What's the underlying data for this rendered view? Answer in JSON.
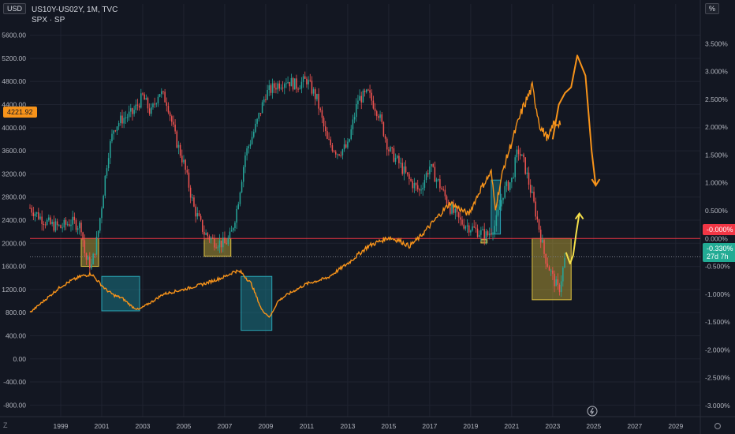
{
  "header": {
    "symbol_line": "US10Y-US02Y, 1M, TVC",
    "overlay_line": "SPX · SP"
  },
  "left_axis_unit": "USD",
  "right_axis_unit": "%",
  "corner_left_label": "Z",
  "colors": {
    "background": "#131722",
    "grid": "#1f2330",
    "candle_up": "#26a69a",
    "candle_down": "#ef5350",
    "spx_line": "#f7931a",
    "zero_line": "#f23645",
    "yellow_box": "#c9b037",
    "teal_box": "#1b8a98",
    "projection_yellow": "#f5e04a"
  },
  "badges": {
    "spx_last": "4221.92",
    "zero_level": "-0.000%",
    "spread_last": "-0.330%",
    "spread_timer": "27d 7h"
  },
  "chart_data": {
    "type": "line",
    "title": "US10Y-US02Y, 1M, TVC",
    "x_axis": {
      "ticks": [
        "1999",
        "2001",
        "2003",
        "2005",
        "2007",
        "2009",
        "2011",
        "2013",
        "2015",
        "2017",
        "2019",
        "2021",
        "2023",
        "2025",
        "2027",
        "2029"
      ],
      "range": [
        1997.5,
        2030.2
      ]
    },
    "left_axis": {
      "label": "USD",
      "ticks": [
        5600,
        5200,
        4800,
        4400,
        4000,
        3600,
        3200,
        2800,
        2400,
        2000,
        1600,
        1200,
        800,
        400,
        0,
        -400,
        -800
      ],
      "tick_labels": [
        "5600.00",
        "5200.00",
        "4800.00",
        "4400.00",
        "4000.00",
        "3600.00",
        "3200.00",
        "2800.00",
        "2400.00",
        "2000.00",
        "1600.00",
        "1200.00",
        "800.00",
        "400.00",
        "0.00",
        "-400.00",
        "-800.00"
      ],
      "range": [
        -1000,
        5800
      ]
    },
    "right_axis": {
      "label": "%",
      "ticks": [
        3.5,
        3.0,
        2.5,
        2.0,
        1.5,
        1.0,
        0.5,
        0.0,
        -0.5,
        -1.0,
        -1.5,
        -2.0,
        -2.5,
        -3.0
      ],
      "tick_labels": [
        "3.500%",
        "3.000%",
        "2.500%",
        "2.000%",
        "1.500%",
        "1.000%",
        "0.500%",
        "0.000%",
        "-0.500%",
        "-1.000%",
        "-1.500%",
        "-2.000%",
        "-2.500%",
        "-3.000%"
      ],
      "range": [
        -3.2,
        3.86
      ]
    },
    "series": [
      {
        "name": "US10Y-US02Y",
        "axis": "right",
        "x": [
          1997.5,
          1998.0,
          1998.5,
          1999.0,
          1999.5,
          2000.0,
          2000.2,
          2000.5,
          2000.8,
          2001.0,
          2001.3,
          2001.6,
          2002.0,
          2002.5,
          2003.0,
          2003.4,
          2003.8,
          2004.2,
          2004.6,
          2005.0,
          2005.5,
          2006.0,
          2006.5,
          2007.0,
          2007.3,
          2007.6,
          2008.0,
          2008.5,
          2009.0,
          2009.5,
          2010.0,
          2010.5,
          2011.0,
          2011.5,
          2012.0,
          2012.5,
          2013.0,
          2013.5,
          2014.0,
          2014.5,
          2015.0,
          2015.5,
          2016.0,
          2016.5,
          2017.0,
          2017.5,
          2018.0,
          2018.5,
          2019.0,
          2019.5,
          2019.8,
          2020.2,
          2020.6,
          2021.0,
          2021.3,
          2021.6,
          2022.0,
          2022.3,
          2022.6,
          2023.0,
          2023.3,
          2023.6
        ],
        "y": [
          0.55,
          0.38,
          0.25,
          0.2,
          0.3,
          0.22,
          -0.35,
          -0.5,
          0.05,
          0.6,
          1.5,
          2.0,
          2.15,
          2.25,
          2.55,
          2.25,
          2.65,
          2.45,
          1.8,
          1.35,
          0.55,
          0.1,
          -0.05,
          -0.1,
          0.05,
          0.55,
          1.5,
          2.0,
          2.6,
          2.75,
          2.85,
          2.75,
          2.85,
          2.5,
          1.75,
          1.55,
          1.65,
          2.5,
          2.6,
          2.25,
          1.6,
          1.35,
          1.05,
          0.85,
          1.3,
          0.95,
          0.55,
          0.3,
          0.2,
          0.1,
          0.05,
          0.25,
          0.85,
          1.05,
          1.6,
          1.35,
          0.75,
          0.25,
          -0.3,
          -0.7,
          -0.95,
          -0.35
        ]
      },
      {
        "name": "SPX",
        "axis": "left",
        "x": [
          1997.5,
          1998.0,
          1998.5,
          1999.0,
          1999.5,
          2000.0,
          2000.5,
          2000.8,
          2001.2,
          2001.6,
          2002.0,
          2002.5,
          2002.8,
          2003.5,
          2004.0,
          2005.0,
          2006.0,
          2007.0,
          2007.5,
          2007.8,
          2008.3,
          2008.8,
          2009.2,
          2009.6,
          2010.0,
          2011.0,
          2012.0,
          2013.0,
          2014.0,
          2015.0,
          2015.5,
          2016.0,
          2016.5,
          2017.0,
          2018.0,
          2018.9,
          2019.5,
          2020.0,
          2020.2,
          2020.6,
          2021.0,
          2021.5,
          2022.0,
          2022.4,
          2022.8,
          2023.0,
          2023.4
        ],
        "y": [
          800,
          950,
          1100,
          1250,
          1350,
          1430,
          1470,
          1350,
          1200,
          1100,
          1050,
          900,
          850,
          1000,
          1120,
          1200,
          1300,
          1420,
          1520,
          1500,
          1300,
          850,
          720,
          1000,
          1100,
          1300,
          1400,
          1650,
          1950,
          2100,
          2050,
          1950,
          2100,
          2300,
          2700,
          2500,
          2950,
          3230,
          2600,
          3300,
          3750,
          4300,
          4700,
          4000,
          3800,
          4050,
          4100
        ]
      }
    ],
    "annotations": [
      {
        "type": "box",
        "color": "yellow",
        "x": [
          2000.0,
          2000.85
        ],
        "y_pct": [
          -0.5,
          0.0
        ]
      },
      {
        "type": "box",
        "color": "teal",
        "x": [
          2001.0,
          2002.85
        ],
        "y_pct": [
          -1.3,
          -0.68
        ]
      },
      {
        "type": "box",
        "color": "yellow",
        "x": [
          2006.0,
          2007.3
        ],
        "y_pct": [
          -0.32,
          0.0
        ]
      },
      {
        "type": "box",
        "color": "teal",
        "x": [
          2007.8,
          2009.3
        ],
        "y_pct": [
          -1.65,
          -0.68
        ]
      },
      {
        "type": "box",
        "color": "yellow",
        "x": [
          2019.5,
          2019.8
        ],
        "y_pct": [
          -0.08,
          -0.02
        ]
      },
      {
        "type": "box",
        "color": "teal",
        "x": [
          2020.0,
          2020.45
        ],
        "y_pct": [
          0.08,
          1.05
        ]
      },
      {
        "type": "box",
        "color": "yellow",
        "x": [
          2022.0,
          2023.9
        ],
        "y_pct": [
          -1.1,
          0.0
        ]
      }
    ],
    "horizontal_levels": [
      {
        "value_pct": 0.0,
        "style": "solid",
        "color": "red"
      },
      {
        "value_pct": -0.33,
        "style": "dotted",
        "color": "grey"
      }
    ],
    "projections": [
      {
        "name": "SPX projection (hand-drawn)",
        "x": [
          2023.0,
          2023.3,
          2023.6,
          2023.9,
          2024.2,
          2024.6,
          2024.9,
          2025.1
        ],
        "y": [
          3800,
          4400,
          4600,
          4700,
          5250,
          4900,
          3600,
          3000
        ]
      },
      {
        "name": "Spread projection (hand-drawn)",
        "x": [
          2023.65,
          2023.85,
          2024.0,
          2024.15,
          2024.3
        ],
        "y_pct": [
          -0.25,
          -0.45,
          -0.3,
          0.1,
          0.45
        ]
      }
    ],
    "grid": true,
    "legend": "none"
  }
}
